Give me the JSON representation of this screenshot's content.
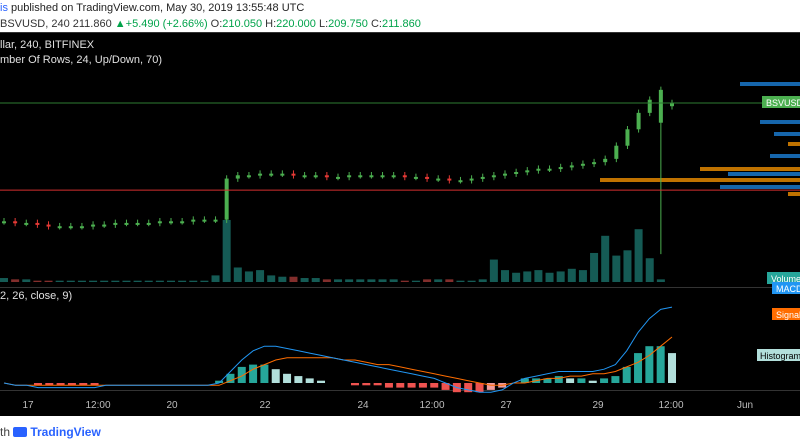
{
  "header": {
    "author": "is",
    "published": " published on TradingView.com, May 30, 2019 13:55:48 UTC",
    "symbol": "BSVUSD, 240  211.860",
    "change_arrow": "▲",
    "change": "+5.490 (+2.66%)",
    "o_label": "O:",
    "o_value": "210.050",
    "h_label": "H:",
    "h_value": "220.000",
    "l_label": "L:",
    "l_value": "209.750",
    "c_label": "C:",
    "c_value": "211.860"
  },
  "legend": {
    "title": "llar, 240, BITFINEX",
    "indicator": "mber Of Rows, 24, Up/Down, 70)",
    "macd_params": "2, 26, close, 9)"
  },
  "badges": {
    "price": "BSVUSD",
    "volume": "Volume",
    "macd": "MACD",
    "signal": "Signal",
    "histogram": "Histogram"
  },
  "footer": {
    "prefix": "th ",
    "brand": "TradingView"
  },
  "colors": {
    "background": "#000000",
    "up": "#26a69a",
    "down": "#ef5350",
    "candle_up": "#4caf50",
    "candle_down": "#e53935",
    "price_line": "#2e7d32",
    "support_line": "#d32f2f",
    "macd": "#2196f3",
    "signal": "#ff6d00",
    "histogram_up": "#b2dfdb",
    "histogram_down": "#ef9a9a",
    "vp_orange": "#ff9800",
    "vp_blue": "#1e88e5"
  },
  "chart_data": [
    {
      "type": "candlestick",
      "title": "BSVUSD, 240, BITFINEX",
      "x_ticks": [
        "17",
        "12:00",
        "20",
        "22",
        "24",
        "12:00",
        "27",
        "29",
        "12:00",
        "Jun"
      ],
      "close": [
        140,
        139,
        139,
        138,
        137,
        137,
        137,
        137,
        138,
        138,
        139,
        139,
        139,
        139,
        140,
        140,
        140,
        141,
        141,
        141,
        166,
        168,
        168,
        169,
        169,
        169,
        168,
        168,
        168,
        167,
        167,
        168,
        168,
        168,
        168,
        168,
        167,
        167,
        166,
        166,
        165,
        165,
        166,
        167,
        168,
        169,
        170,
        171,
        172,
        172,
        173,
        174,
        175,
        176,
        178,
        186,
        196,
        206,
        214,
        220,
        212
      ],
      "open_last": [
        200,
        210.05
      ],
      "last_price": "211.860",
      "support_level": 159
    },
    {
      "type": "bar",
      "title": "Volume",
      "values": [
        3,
        2,
        2,
        1,
        1,
        1,
        1,
        1,
        1,
        1,
        1,
        1,
        1,
        1,
        1,
        1,
        1,
        1,
        1,
        5,
        47,
        11,
        8,
        9,
        5,
        4,
        4,
        3,
        3,
        2,
        2,
        2,
        2,
        2,
        2,
        2,
        1,
        1,
        2,
        2,
        2,
        1,
        1,
        2,
        17,
        9,
        7,
        8,
        9,
        7,
        8,
        10,
        9,
        22,
        35,
        20,
        24,
        40,
        18,
        2
      ]
    },
    {
      "type": "line",
      "title": "MACD",
      "series": [
        {
          "name": "MACD",
          "values": [
            0,
            -1,
            -1,
            -2,
            -2,
            -2,
            -2,
            -2,
            -2,
            -1,
            -1,
            -1,
            -1,
            -1,
            -1,
            -1,
            -1,
            -1,
            -1,
            0,
            5,
            10,
            14,
            16,
            16,
            15,
            14,
            13,
            12,
            11,
            10,
            9,
            8,
            7,
            6,
            5,
            4,
            3,
            2,
            0,
            -2,
            -3,
            -4,
            -4,
            -3,
            0,
            2,
            3,
            4,
            5,
            5,
            5,
            5,
            6,
            8,
            14,
            22,
            28,
            32,
            33
          ]
        },
        {
          "name": "Signal",
          "values": [
            0,
            -1,
            -1,
            -1,
            -1,
            -1,
            -1,
            -1,
            -1,
            -1,
            -1,
            -1,
            -1,
            -1,
            -1,
            -1,
            -1,
            -1,
            -1,
            -1,
            1,
            3,
            6,
            8,
            10,
            11,
            11,
            11,
            11,
            11,
            10,
            10,
            9,
            8,
            8,
            7,
            6,
            5,
            4,
            3,
            2,
            1,
            0,
            -1,
            -1,
            0,
            0,
            1,
            2,
            2,
            3,
            3,
            4,
            4,
            5,
            7,
            9,
            12,
            16,
            20
          ]
        }
      ]
    }
  ]
}
